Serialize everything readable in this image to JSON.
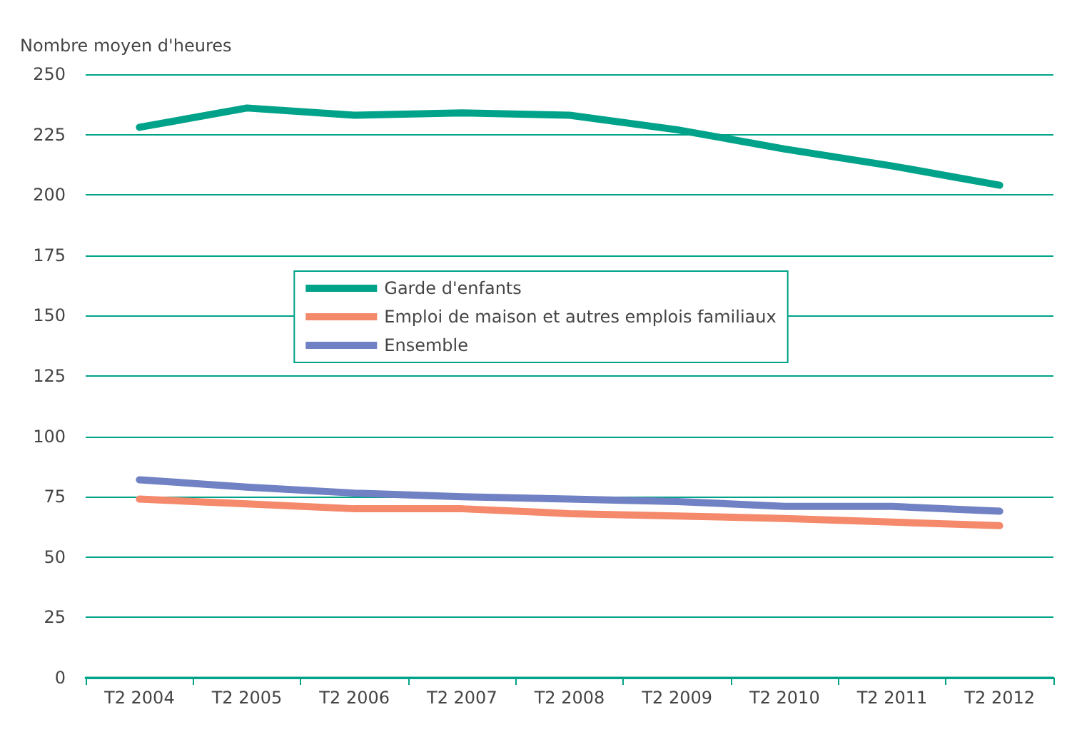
{
  "chart_data": {
    "type": "line",
    "ylabel": "Nombre moyen d'heures",
    "categories": [
      "T2 2004",
      "T2 2005",
      "T2 2006",
      "T2 2007",
      "T2 2008",
      "T2 2009",
      "T2 2010",
      "T2 2011",
      "T2 2012"
    ],
    "series": [
      {
        "name": "Garde d'enfants",
        "color": "#00a389",
        "values": [
          228,
          236,
          233,
          234,
          233,
          227,
          219,
          212,
          204
        ]
      },
      {
        "name": "Emploi de maison et autres emplois familiaux",
        "color": "#f4896b",
        "values": [
          74,
          72,
          70,
          70,
          68,
          67,
          66,
          64.5,
          63
        ]
      },
      {
        "name": "Ensemble",
        "color": "#7081c4",
        "values": [
          82,
          79,
          76.5,
          75,
          74,
          73,
          71,
          71,
          69
        ]
      }
    ],
    "ylim": [
      0,
      250
    ],
    "yticks": [
      0,
      25,
      50,
      75,
      100,
      125,
      150,
      175,
      200,
      225,
      250
    ],
    "grid": "y",
    "legend": "center",
    "marker": "none",
    "line_style": "solid"
  }
}
